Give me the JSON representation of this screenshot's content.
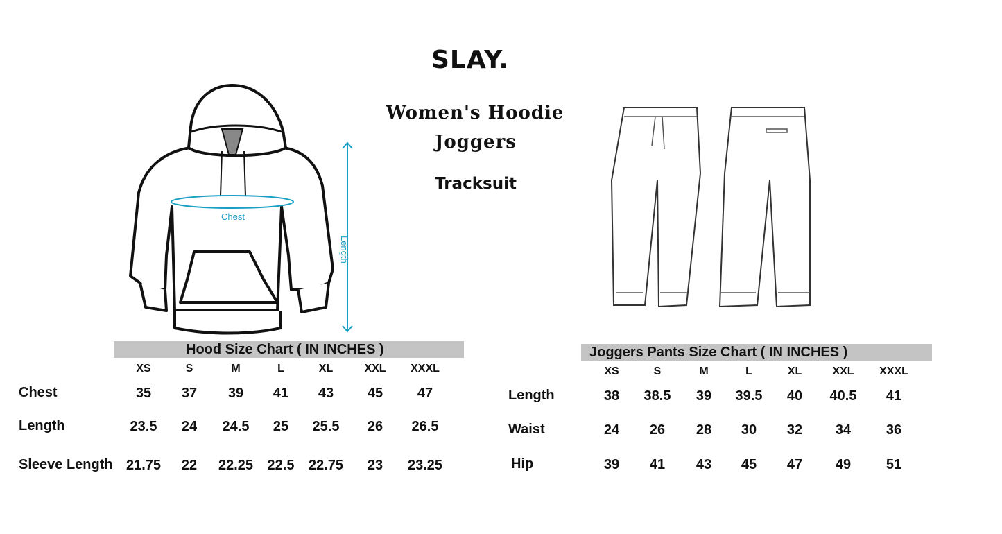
{
  "brand": "SLAY.",
  "product": {
    "line1": "Women's  Hoodie",
    "line2": "Joggers",
    "line3": "Tracksuit"
  },
  "hoodie_illustration": {
    "chest_label": "Chest",
    "length_label": "Length",
    "accent_color": "#1a9fc4"
  },
  "hood_chart": {
    "title": "Hood Size Chart ( IN INCHES )",
    "sizes": [
      "XS",
      "S",
      "M",
      "L",
      "XL",
      "XXL",
      "XXXL"
    ],
    "rows": [
      {
        "label": "Chest",
        "values": [
          "35",
          "37",
          "39",
          "41",
          "43",
          "45",
          "47"
        ]
      },
      {
        "label": "Length",
        "values": [
          "23.5",
          "24",
          "24.5",
          "25",
          "25.5",
          "26",
          "26.5"
        ]
      },
      {
        "label": "Sleeve Length",
        "values": [
          "21.75",
          "22",
          "22.25",
          "22.5",
          "22.75",
          "23",
          "23.25"
        ]
      }
    ]
  },
  "joggers_chart": {
    "title": "Joggers Pants Size Chart ( IN INCHES )",
    "sizes": [
      "XS",
      "S",
      "M",
      "L",
      "XL",
      "XXL",
      "XXXL"
    ],
    "rows": [
      {
        "label": "Length",
        "values": [
          "38",
          "38.5",
          "39",
          "39.5",
          "40",
          "40.5",
          "41"
        ]
      },
      {
        "label": "Waist",
        "values": [
          "24",
          "26",
          "28",
          "30",
          "32",
          "34",
          "36"
        ]
      },
      {
        "label": "Hip",
        "values": [
          "39",
          "41",
          "43",
          "45",
          "47",
          "49",
          "51"
        ]
      }
    ]
  }
}
